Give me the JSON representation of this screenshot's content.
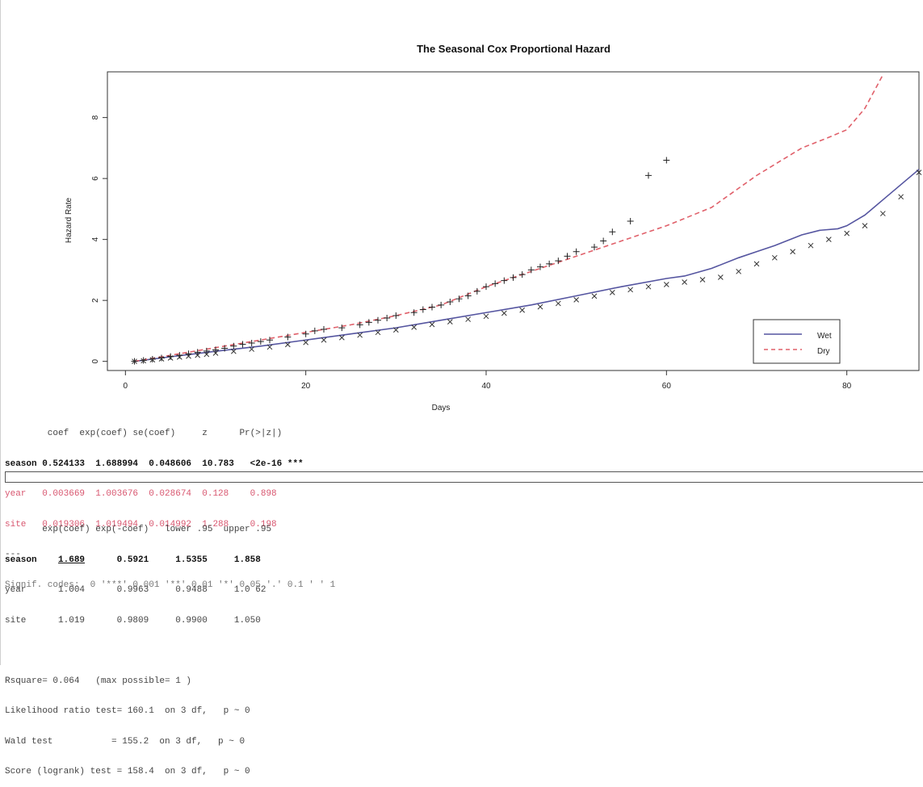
{
  "chart_data": {
    "type": "line",
    "title": "The Seasonal Cox Proportional Hazard",
    "xlabel": "Days",
    "ylabel": "Hazard Rate",
    "xlim": [
      -2,
      88
    ],
    "ylim": [
      -0.3,
      9.5
    ],
    "xticks": [
      0,
      20,
      40,
      60,
      80
    ],
    "yticks": [
      0,
      2,
      4,
      6,
      8
    ],
    "legend_position": "bottom-right",
    "series": [
      {
        "name": "Wet",
        "color": "#5555a0",
        "dash": "solid",
        "x": [
          1,
          5,
          10,
          15,
          20,
          25,
          30,
          35,
          40,
          45,
          50,
          55,
          60,
          62,
          65,
          68,
          70,
          72,
          75,
          77,
          79,
          80,
          82,
          84,
          86,
          88
        ],
        "y": [
          0,
          0.15,
          0.33,
          0.5,
          0.7,
          0.9,
          1.1,
          1.35,
          1.6,
          1.85,
          2.15,
          2.45,
          2.72,
          2.8,
          3.05,
          3.4,
          3.6,
          3.8,
          4.15,
          4.3,
          4.35,
          4.45,
          4.8,
          5.3,
          5.8,
          6.3
        ]
      },
      {
        "name": "Dry",
        "color": "#e0606a",
        "dash": "dashed",
        "x": [
          1,
          5,
          10,
          15,
          20,
          25,
          30,
          35,
          40,
          45,
          50,
          55,
          60,
          65,
          70,
          75,
          78,
          80,
          82,
          84
        ],
        "y": [
          0,
          0.2,
          0.45,
          0.7,
          0.95,
          1.2,
          1.5,
          1.85,
          2.45,
          2.95,
          3.45,
          3.95,
          4.45,
          5.05,
          6.1,
          7.0,
          7.35,
          7.6,
          8.3,
          9.4
        ]
      },
      {
        "name": "",
        "color": "#222222",
        "marker": "+",
        "x": [
          1,
          2,
          3,
          4,
          5,
          6,
          7,
          8,
          9,
          10,
          11,
          12,
          13,
          14,
          15,
          16,
          18,
          20,
          21,
          22,
          24,
          26,
          27,
          28,
          29,
          30,
          32,
          33,
          34,
          35,
          36,
          37,
          38,
          39,
          40,
          41,
          42,
          43,
          44,
          45,
          46,
          47,
          48,
          49,
          50,
          52,
          53,
          54,
          56,
          58,
          60
        ],
        "y": [
          0,
          0.03,
          0.07,
          0.11,
          0.16,
          0.2,
          0.25,
          0.3,
          0.34,
          0.38,
          0.43,
          0.5,
          0.56,
          0.6,
          0.65,
          0.7,
          0.8,
          0.9,
          1.0,
          1.05,
          1.1,
          1.2,
          1.28,
          1.35,
          1.42,
          1.5,
          1.6,
          1.7,
          1.78,
          1.85,
          1.95,
          2.05,
          2.15,
          2.3,
          2.45,
          2.55,
          2.65,
          2.75,
          2.85,
          3.0,
          3.1,
          3.2,
          3.3,
          3.45,
          3.6,
          3.75,
          3.95,
          4.25,
          4.6,
          6.1,
          6.6
        ]
      },
      {
        "name": "",
        "color": "#333333",
        "marker": "x",
        "x": [
          1,
          2,
          3,
          4,
          5,
          6,
          7,
          8,
          9,
          10,
          12,
          14,
          16,
          18,
          20,
          22,
          24,
          26,
          28,
          30,
          32,
          34,
          36,
          38,
          40,
          42,
          44,
          46,
          48,
          50,
          52,
          54,
          56,
          58,
          60,
          62,
          64,
          66,
          68,
          70,
          72,
          74,
          76,
          78,
          80,
          82,
          84,
          86,
          88
        ],
        "y": [
          0,
          0.02,
          0.05,
          0.08,
          0.11,
          0.14,
          0.17,
          0.2,
          0.23,
          0.27,
          0.33,
          0.4,
          0.47,
          0.55,
          0.62,
          0.7,
          0.78,
          0.86,
          0.95,
          1.03,
          1.12,
          1.21,
          1.3,
          1.38,
          1.48,
          1.58,
          1.68,
          1.79,
          1.9,
          2.02,
          2.14,
          2.26,
          2.35,
          2.45,
          2.52,
          2.6,
          2.68,
          2.76,
          2.95,
          3.2,
          3.4,
          3.6,
          3.8,
          4.0,
          4.2,
          4.45,
          4.85,
          5.4,
          6.2
        ]
      }
    ]
  },
  "regression": {
    "header": "        coef  exp(coef) se(coef)     z      Pr(>|z|)",
    "rows": [
      {
        "text": "season 0.524133  1.688994  0.048606  10.783   <2e-16 ***",
        "style": "bold"
      },
      {
        "text": "year   0.003669  1.003676  0.028674  0.128    0.898",
        "style": "red"
      },
      {
        "text": "site   0.019306  1.019494  0.014992  1.288    0.198",
        "style": "red"
      }
    ],
    "separator": "---",
    "signif": "Signif. codes:  0 '***' 0.001 '**' 0.01 '*' 0.05 '.' 0.1 ' ' 1"
  },
  "exp_table": {
    "header": "       exp(coef) exp(-coef)   lower .95  upper .95",
    "season_label": "season",
    "season_value": "1.689",
    "season_rest": "      0.5921     1.5355     1.858",
    "rows": [
      "year      1.004      0.9963     0.9488     1.0 62",
      "site      1.019      0.9809     0.9900     1.050"
    ]
  },
  "tests": [
    "Rsquare= 0.064   (max possible= 1 )",
    "Likelihood ratio test= 160.1  on 3 df,   p ~ 0",
    "Wald test           = 155.2  on 3 df,   p ~ 0",
    "Score (logrank) test = 158.4  on 3 df,   p ~ 0"
  ]
}
